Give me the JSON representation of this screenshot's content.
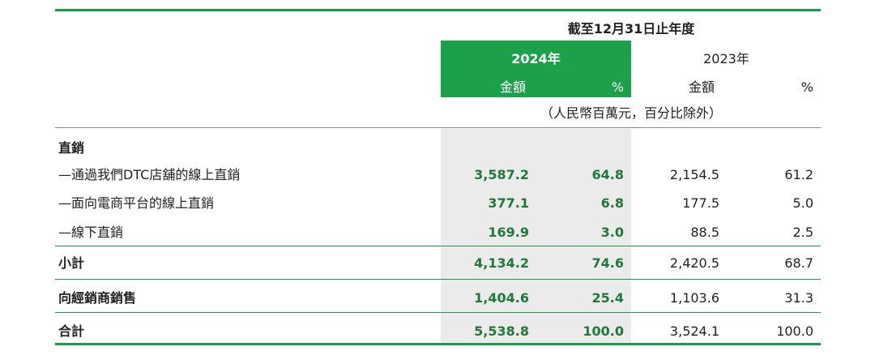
{
  "header": {
    "period": "截至12月31日止年度",
    "years": [
      "2024年",
      "2023年"
    ],
    "columns": [
      "金額",
      "%",
      "金額",
      "%"
    ],
    "unit_note": "（人民幣百萬元，百分比除外）"
  },
  "table": {
    "rows": [
      [
        "直銷"
      ],
      [
        "—通過我們DTC店舖的線上直銷",
        "3,587.2",
        "64.8",
        "2,154.5",
        "61.2"
      ],
      [
        "—面向電商平台的線上直銷",
        "377.1",
        "6.8",
        "177.5",
        "5.0"
      ],
      [
        "—線下直銷",
        "169.9",
        "3.0",
        "88.5",
        "2.5"
      ],
      [
        "小計",
        "4,134.2",
        "74.6",
        "2,420.5",
        "68.7"
      ],
      [
        "向經銷商銷售",
        "1,404.6",
        "25.4",
        "1,103.6",
        "31.3"
      ],
      [
        "合計",
        "5,538.8",
        "100.0",
        "3,524.1",
        "100.0"
      ]
    ]
  }
}
